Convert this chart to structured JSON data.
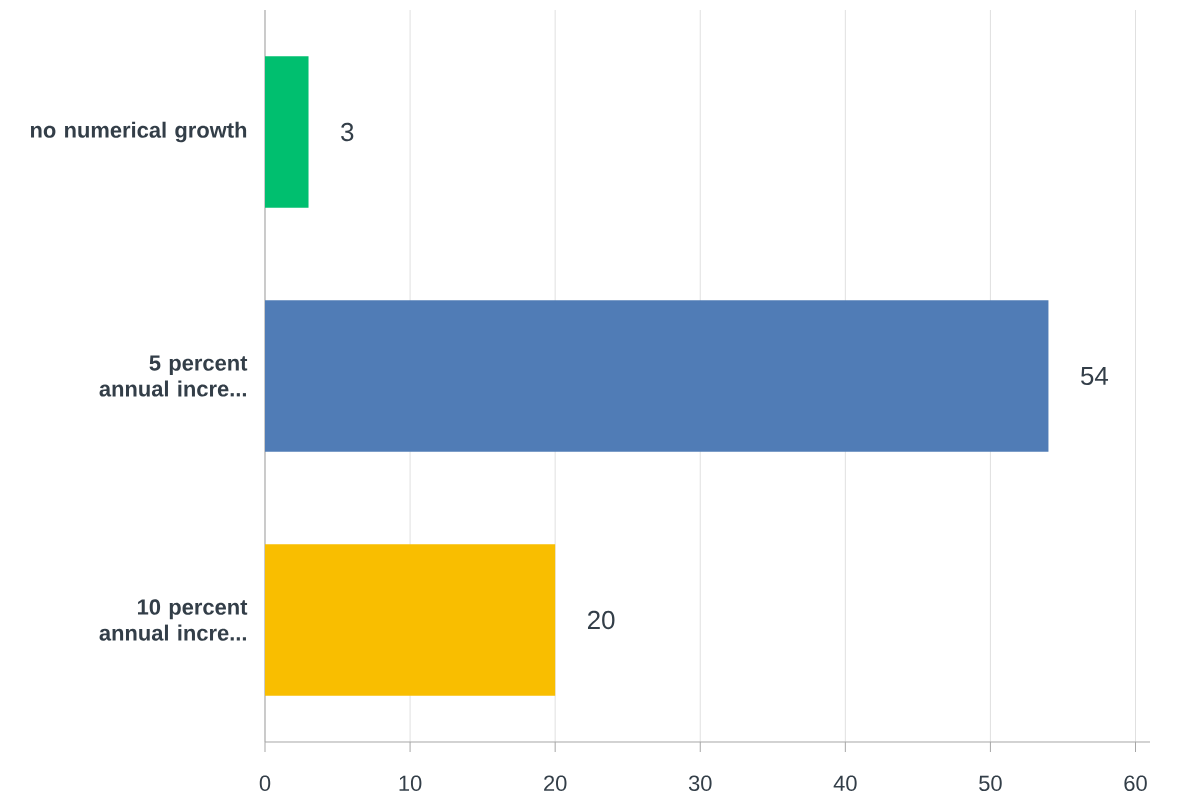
{
  "chart_data": {
    "type": "bar",
    "orientation": "horizontal",
    "categories": [
      "no numerical growth",
      "5 percent annual incre...",
      "10 percent annual incre..."
    ],
    "values": [
      3,
      54,
      20
    ],
    "colors": [
      "#00bf6f",
      "#507cb6",
      "#f9be00"
    ],
    "xlim": [
      0,
      61
    ],
    "xticks": [
      0,
      10,
      20,
      30,
      40,
      50,
      60
    ],
    "grid": "x",
    "data_labels": true
  }
}
